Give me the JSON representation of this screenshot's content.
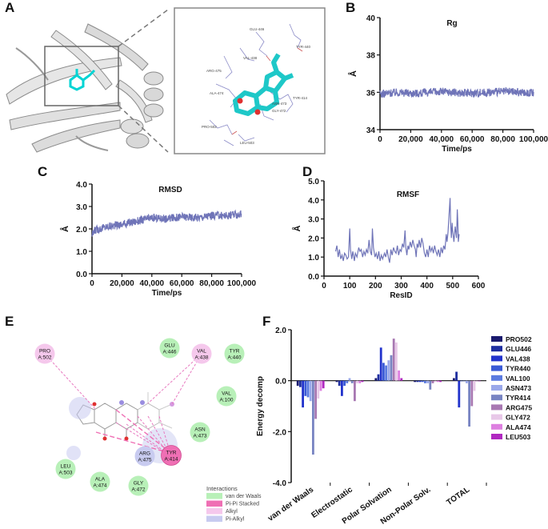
{
  "panels": {
    "a": "A",
    "b": "B",
    "c": "C",
    "d": "D",
    "e": "E",
    "f": "F"
  },
  "zoom_labels": [
    "GLU-446",
    "TYR-440",
    "VAL-438",
    "ARG-475",
    "ALA-474",
    "ASN-473",
    "TYR-414",
    "GLY-472",
    "PRO-502",
    "LEU-503"
  ],
  "chart_data": [
    {
      "id": "rg",
      "type": "line",
      "title": "Rg",
      "xlabel": "Time/ps",
      "ylabel": "Å",
      "xlim": [
        0,
        100000
      ],
      "ylim": [
        34,
        40
      ],
      "xticks": [
        "0",
        "20,000",
        "40,000",
        "60,000",
        "80,000",
        "100,000"
      ],
      "yticks": [
        "34",
        "36",
        "38",
        "40"
      ],
      "series": [
        {
          "name": "Rg",
          "mean": 35.95,
          "noise": 0.22,
          "points": [
            [
              0,
              35.9
            ],
            [
              10000,
              36.0
            ],
            [
              25000,
              35.95
            ],
            [
              40000,
              36.05
            ],
            [
              55000,
              35.95
            ],
            [
              70000,
              36.0
            ],
            [
              85000,
              36.05
            ],
            [
              100000,
              35.95
            ]
          ]
        }
      ]
    },
    {
      "id": "rmsd",
      "type": "line",
      "title": "RMSD",
      "xlabel": "Time/ps",
      "ylabel": "Å",
      "xlim": [
        0,
        100000
      ],
      "ylim": [
        0,
        4
      ],
      "xticks": [
        "0",
        "20,000",
        "40,000",
        "60,000",
        "80,000",
        "100,000"
      ],
      "yticks": [
        "0.0",
        "1.0",
        "2.0",
        "3.0",
        "4.0"
      ],
      "series": [
        {
          "name": "RMSD",
          "noise": 0.18,
          "points": [
            [
              0,
              1.7
            ],
            [
              2000,
              1.95
            ],
            [
              10000,
              2.1
            ],
            [
              20000,
              2.2
            ],
            [
              30000,
              2.35
            ],
            [
              40000,
              2.5
            ],
            [
              50000,
              2.45
            ],
            [
              60000,
              2.55
            ],
            [
              70000,
              2.5
            ],
            [
              80000,
              2.6
            ],
            [
              90000,
              2.6
            ],
            [
              100000,
              2.65
            ]
          ]
        }
      ]
    },
    {
      "id": "rmsf",
      "type": "line",
      "title": "RMSF",
      "xlabel": "ResID",
      "ylabel": "Å",
      "xlim": [
        0,
        600
      ],
      "ylim": [
        0,
        5
      ],
      "xticks": [
        "0",
        "100",
        "200",
        "300",
        "400",
        "500",
        "600"
      ],
      "yticks": [
        "0.0",
        "1.0",
        "2.0",
        "3.0",
        "4.0",
        "5.0"
      ],
      "series": [
        {
          "name": "RMSF",
          "points": [
            [
              45,
              1.3
            ],
            [
              50,
              1.6
            ],
            [
              55,
              1.0
            ],
            [
              60,
              1.4
            ],
            [
              65,
              0.9
            ],
            [
              70,
              1.1
            ],
            [
              75,
              0.8
            ],
            [
              80,
              1.2
            ],
            [
              85,
              1.1
            ],
            [
              90,
              0.9
            ],
            [
              95,
              1.0
            ],
            [
              100,
              2.5
            ],
            [
              103,
              1.4
            ],
            [
              108,
              0.9
            ],
            [
              112,
              1.3
            ],
            [
              118,
              0.8
            ],
            [
              122,
              1.2
            ],
            [
              128,
              1.0
            ],
            [
              135,
              1.5
            ],
            [
              140,
              1.3
            ],
            [
              145,
              1.4
            ],
            [
              150,
              1.0
            ],
            [
              155,
              1.3
            ],
            [
              160,
              1.1
            ],
            [
              165,
              1.4
            ],
            [
              170,
              1.2
            ],
            [
              175,
              1.9
            ],
            [
              180,
              1.3
            ],
            [
              185,
              1.1
            ],
            [
              188,
              2.5
            ],
            [
              192,
              1.5
            ],
            [
              198,
              1.0
            ],
            [
              203,
              1.2
            ],
            [
              208,
              0.9
            ],
            [
              213,
              1.3
            ],
            [
              218,
              0.8
            ],
            [
              223,
              1.1
            ],
            [
              228,
              0.9
            ],
            [
              235,
              1.2
            ],
            [
              240,
              1.0
            ],
            [
              245,
              1.4
            ],
            [
              250,
              1.0
            ],
            [
              255,
              0.7
            ],
            [
              260,
              1.4
            ],
            [
              265,
              1.1
            ],
            [
              270,
              1.5
            ],
            [
              275,
              1.3
            ],
            [
              280,
              1.2
            ],
            [
              285,
              1.6
            ],
            [
              290,
              1.1
            ],
            [
              295,
              1.4
            ],
            [
              300,
              1.3
            ],
            [
              305,
              1.7
            ],
            [
              310,
              1.5
            ],
            [
              315,
              2.4
            ],
            [
              318,
              1.5
            ],
            [
              322,
              1.1
            ],
            [
              326,
              1.6
            ],
            [
              330,
              1.4
            ],
            [
              335,
              1.8
            ],
            [
              340,
              1.5
            ],
            [
              345,
              1.9
            ],
            [
              350,
              1.6
            ],
            [
              355,
              1.4
            ],
            [
              358,
              1.0
            ],
            [
              362,
              1.7
            ],
            [
              366,
              1.5
            ],
            [
              370,
              1.9
            ],
            [
              375,
              1.5
            ],
            [
              380,
              2.0
            ],
            [
              385,
              1.7
            ],
            [
              390,
              1.2
            ],
            [
              395,
              1.0
            ],
            [
              400,
              1.4
            ],
            [
              405,
              1.0
            ],
            [
              410,
              1.6
            ],
            [
              415,
              1.3
            ],
            [
              420,
              1.5
            ],
            [
              425,
              1.2
            ],
            [
              430,
              1.6
            ],
            [
              435,
              1.3
            ],
            [
              440,
              1.1
            ],
            [
              445,
              1.4
            ],
            [
              450,
              1.0
            ],
            [
              455,
              1.5
            ],
            [
              460,
              1.2
            ],
            [
              465,
              1.6
            ],
            [
              470,
              1.4
            ],
            [
              475,
              2.2
            ],
            [
              478,
              1.8
            ],
            [
              482,
              2.3
            ],
            [
              486,
              3.2
            ],
            [
              490,
              4.1
            ],
            [
              492,
              2.8
            ],
            [
              495,
              2.0
            ],
            [
              498,
              2.8
            ],
            [
              500,
              2.4
            ],
            [
              505,
              1.8
            ],
            [
              510,
              2.6
            ],
            [
              515,
              2.0
            ],
            [
              518,
              3.5
            ],
            [
              520,
              2.8
            ],
            [
              522,
              1.8
            ],
            [
              525,
              2.2
            ]
          ]
        }
      ]
    },
    {
      "id": "decomp",
      "type": "bar",
      "ylabel": "Energy decomp",
      "ylim": [
        -4.0,
        2.0
      ],
      "yticks": [
        "-4.0",
        "-2.0",
        "0.0",
        "2.0"
      ],
      "categories": [
        "van der Waals",
        "Electrostatic",
        "Polar Solvation",
        "Non-Polar Solv.",
        "TOTAL"
      ],
      "series": [
        {
          "name": "PRO502",
          "color": "#1a1a6e",
          "values": [
            -0.2,
            -0.05,
            0.1,
            -0.05,
            0.1
          ]
        },
        {
          "name": "GLU446",
          "color": "#1e2ea0",
          "values": [
            -0.25,
            -0.2,
            0.25,
            -0.05,
            0.35
          ]
        },
        {
          "name": "VAL438",
          "color": "#2233cc",
          "values": [
            -1.05,
            -0.6,
            1.3,
            -0.05,
            -1.05
          ]
        },
        {
          "name": "TYR440",
          "color": "#3a5ad6",
          "values": [
            -0.6,
            -0.2,
            0.7,
            -0.05,
            0.0
          ]
        },
        {
          "name": "VAL100",
          "color": "#5b7be0",
          "values": [
            -0.65,
            -0.1,
            0.6,
            -0.1,
            0.0
          ]
        },
        {
          "name": "ASN473",
          "color": "#9aa8ea",
          "values": [
            -0.8,
            0.1,
            0.8,
            -0.1,
            -0.1
          ]
        },
        {
          "name": "TYR414",
          "color": "#7884c2",
          "values": [
            -2.9,
            -0.1,
            1.0,
            -0.35,
            -1.8
          ]
        },
        {
          "name": "ARG475",
          "color": "#a878b2",
          "values": [
            -1.5,
            -0.8,
            1.65,
            -0.1,
            -1.0
          ]
        },
        {
          "name": "GLY472",
          "color": "#e8c8e8",
          "values": [
            -0.7,
            -0.1,
            1.5,
            -0.05,
            -0.4
          ]
        },
        {
          "name": "ALA474",
          "color": "#dd80e0",
          "values": [
            -0.4,
            -0.1,
            0.4,
            -0.05,
            0.0
          ]
        },
        {
          "name": "LEU503",
          "color": "#b028c0",
          "values": [
            -0.3,
            -0.05,
            0.1,
            -0.05,
            0.0
          ]
        }
      ]
    }
  ],
  "interaction_nodes": [
    {
      "id": "pro502",
      "line1": "PRO",
      "line2": "A:502",
      "type": "alkyl"
    },
    {
      "id": "glu446",
      "line1": "GLU",
      "line2": "A:446",
      "type": "vdw"
    },
    {
      "id": "val438",
      "line1": "VAL",
      "line2": "A:438",
      "type": "alkyl"
    },
    {
      "id": "tyr440",
      "line1": "TYR",
      "line2": "A:440",
      "type": "vdw"
    },
    {
      "id": "val100",
      "line1": "VAL",
      "line2": "A:100",
      "type": "vdw"
    },
    {
      "id": "asn473",
      "line1": "ASN",
      "line2": "A:473",
      "type": "vdw"
    },
    {
      "id": "arg475",
      "line1": "ARG",
      "line2": "A:475",
      "type": "pialkyl"
    },
    {
      "id": "tyr414",
      "line1": "TYR",
      "line2": "A:414",
      "type": "pipi"
    },
    {
      "id": "leu503",
      "line1": "LEU",
      "line2": "A:503",
      "type": "vdw"
    },
    {
      "id": "ala474",
      "line1": "ALA",
      "line2": "A:474",
      "type": "vdw"
    },
    {
      "id": "gly472",
      "line1": "GLY",
      "line2": "A:472",
      "type": "vdw"
    }
  ],
  "interaction_legend": {
    "title": "Interactions",
    "items": [
      {
        "label": "van der Waals",
        "color": "#b8f0b8"
      },
      {
        "label": "Pi-Pi Stacked",
        "color": "#ef6fb4"
      },
      {
        "label": "Alkyl",
        "color": "#f5c8ec"
      },
      {
        "label": "Pi-Alkyl",
        "color": "#c8cbf0"
      }
    ]
  }
}
